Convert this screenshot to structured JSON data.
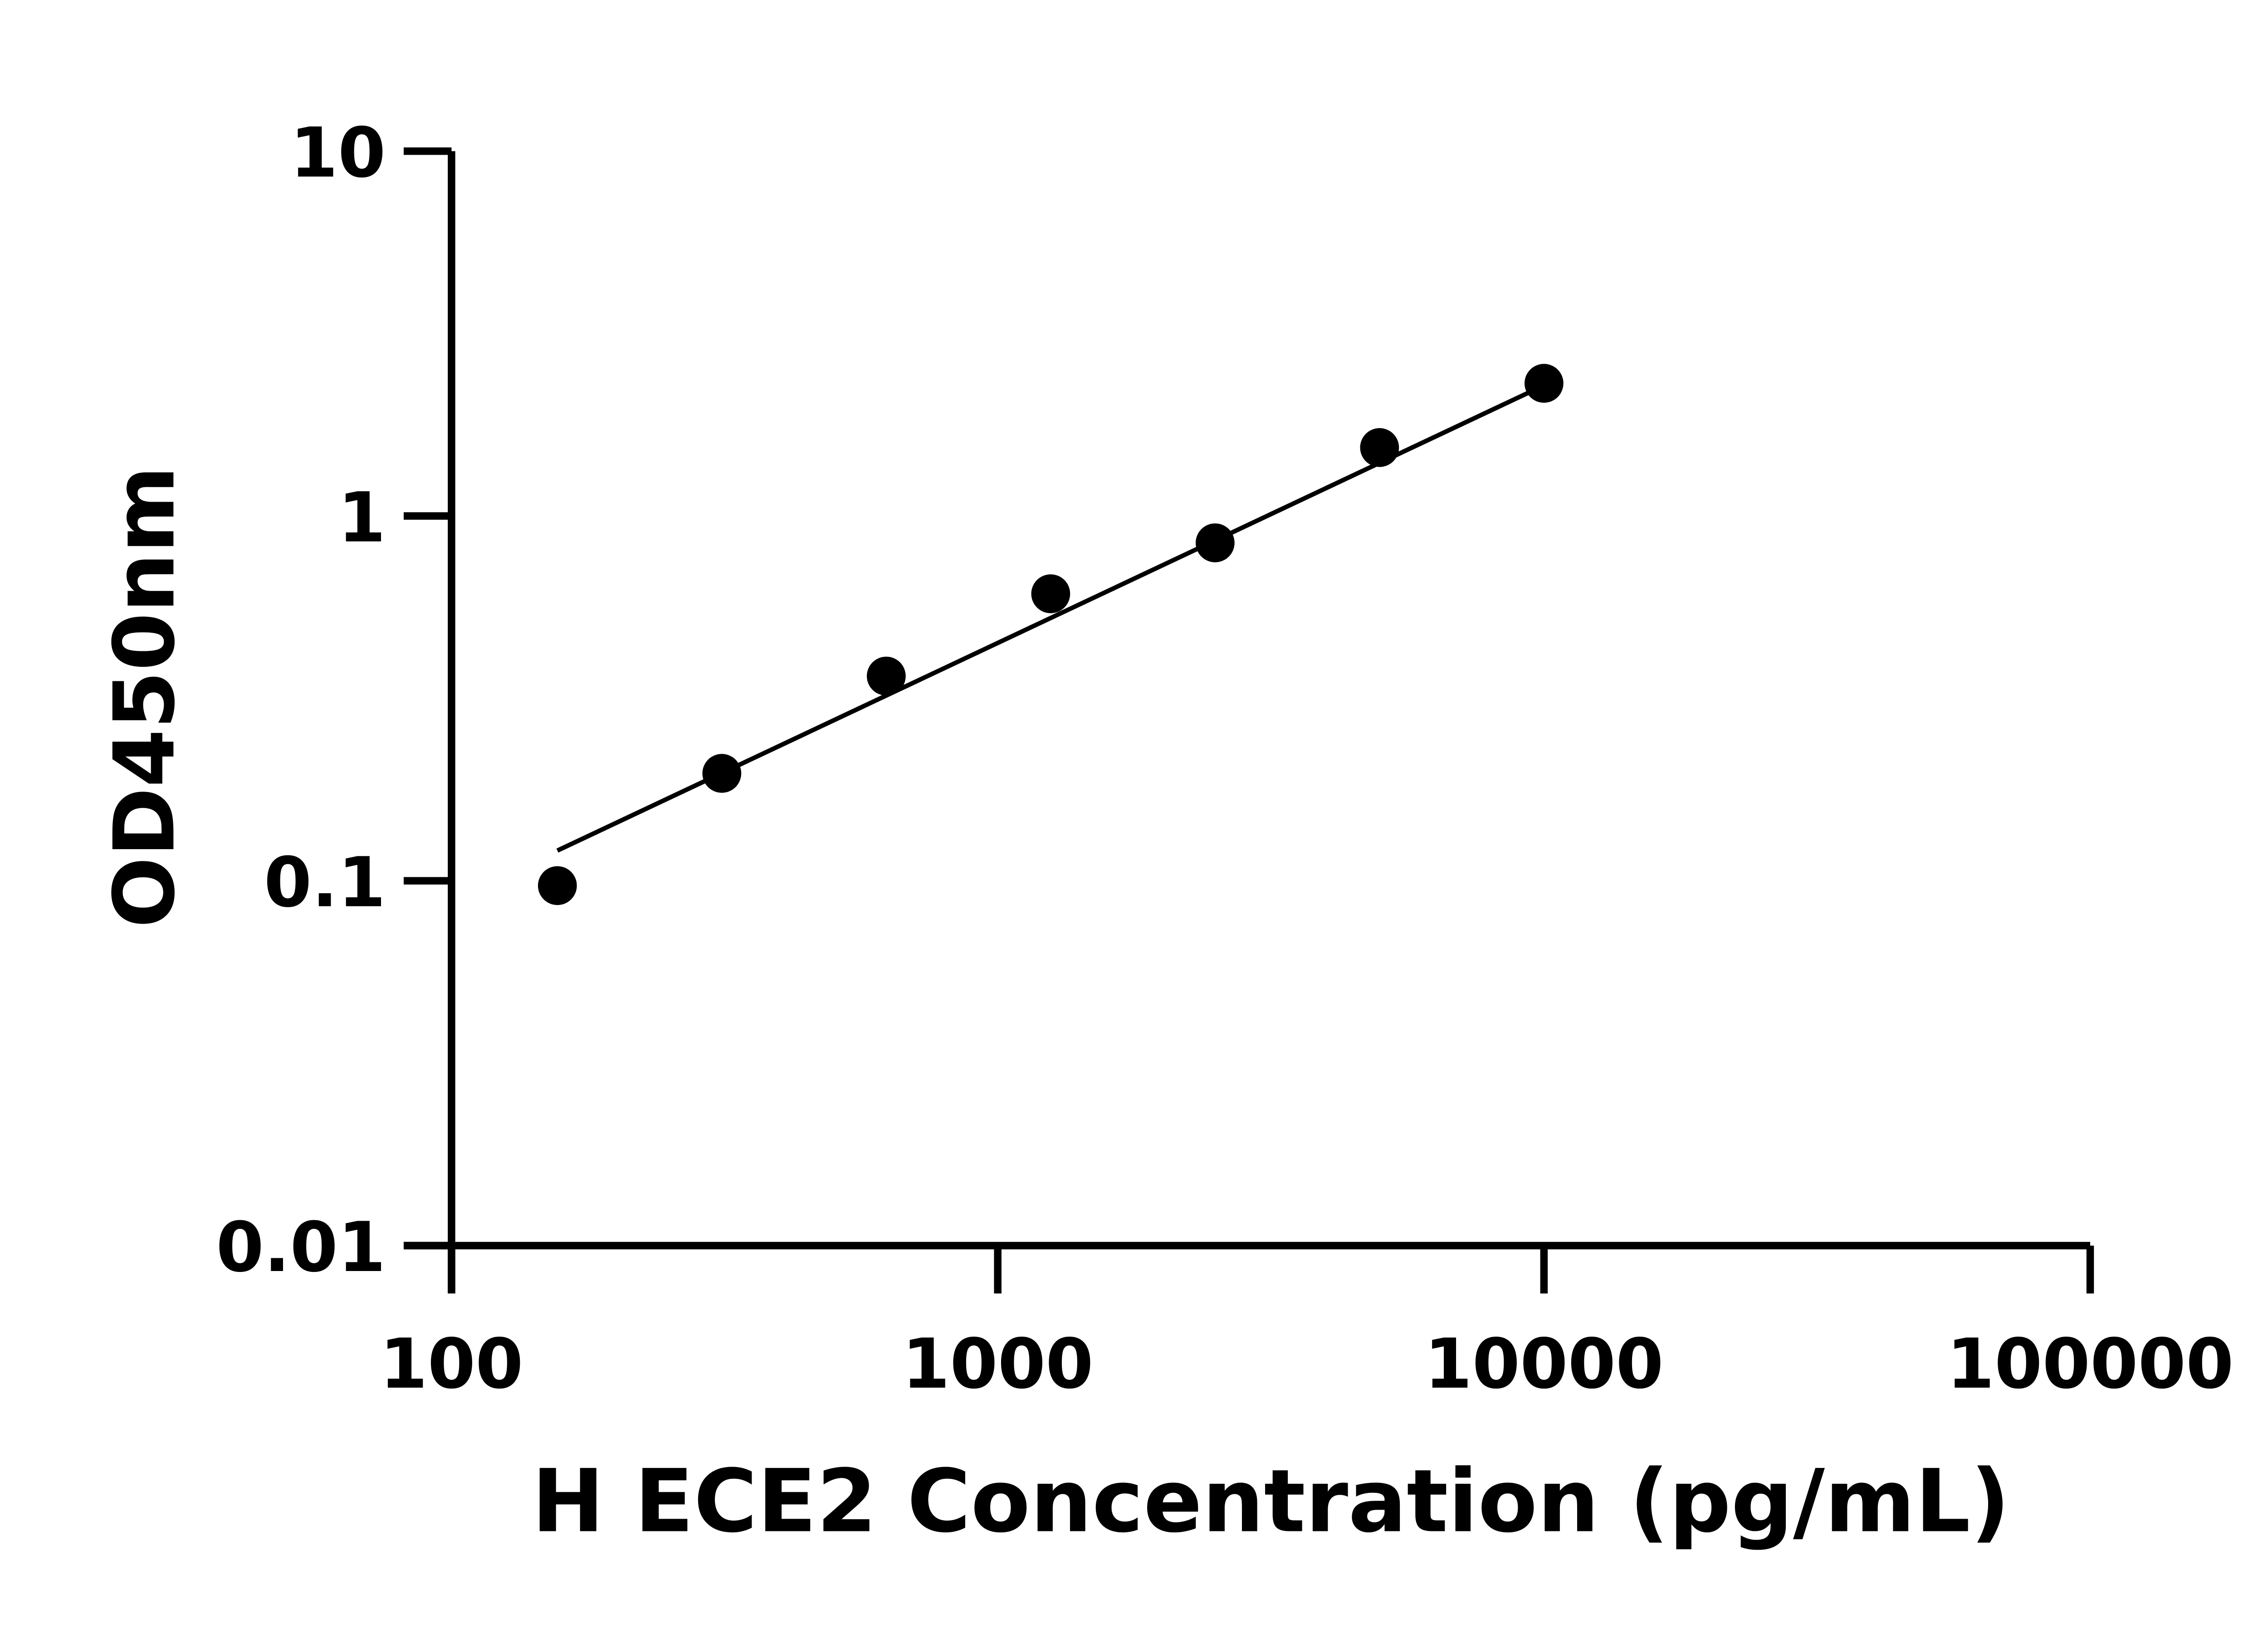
{
  "chart_data": {
    "type": "scatter",
    "xlabel": "H ECE2 Concentration (pg/mL)",
    "ylabel": "OD450nm",
    "x_scale": "log",
    "y_scale": "log",
    "xlim": [
      100,
      100000
    ],
    "ylim": [
      0.01,
      10
    ],
    "x_ticks": [
      100,
      1000,
      10000,
      100000
    ],
    "x_tick_labels": [
      "100",
      "1000",
      "10000",
      "100000"
    ],
    "y_ticks": [
      0.01,
      0.1,
      1,
      10
    ],
    "y_tick_labels": [
      "0.01",
      "0.1",
      "1",
      "10"
    ],
    "grid": false,
    "series": [
      {
        "x": [
          156.25,
          312.5,
          625,
          1250,
          2500,
          5000,
          10000
        ],
        "y": [
          0.097,
          0.197,
          0.364,
          0.612,
          0.844,
          1.54,
          2.31
        ],
        "marker": "circle",
        "color": "#000000"
      }
    ],
    "fit_line": {
      "x": [
        156.25,
        10000
      ],
      "y": [
        0.121,
        2.28
      ],
      "color": "#000000"
    }
  }
}
